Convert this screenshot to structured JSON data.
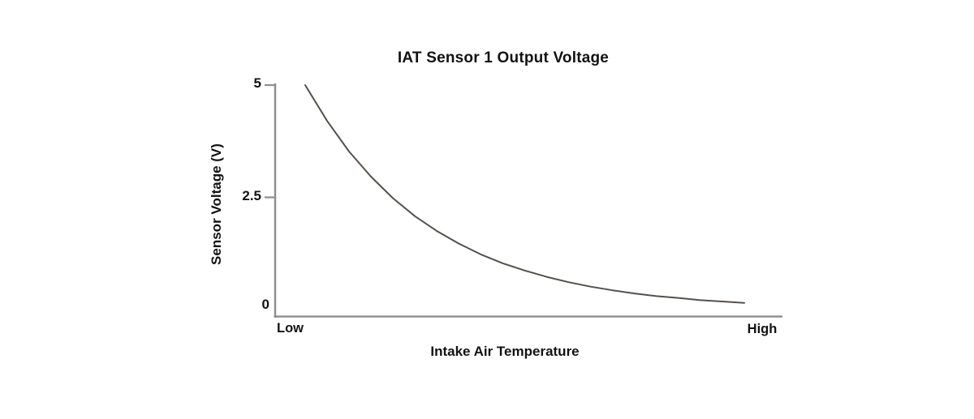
{
  "page": {
    "background": "#ffffff"
  },
  "chart_data": {
    "type": "line",
    "title": "IAT Sensor 1 Output Voltage",
    "xlabel": "Intake Air Temperature",
    "ylabel": "Sensor Voltage (V)",
    "grid": false,
    "legend": false,
    "x_axis": {
      "scale": "qualitative",
      "end_labels": [
        "Low",
        "High"
      ]
    },
    "y_axis": {
      "range": [
        0,
        5
      ],
      "ticks": [
        {
          "value": 5,
          "label": "5",
          "tick_mark": true
        },
        {
          "value": 2.5,
          "label": "2.5",
          "tick_mark": true
        },
        {
          "value": 0,
          "label": "0",
          "tick_mark": false
        }
      ]
    },
    "series": [
      {
        "name": "IAT Sensor 1 output voltage",
        "shape": "exponential-decay",
        "x_unit": "fraction of Low-to-High temperature span",
        "y_unit": "volts",
        "points": [
          [
            0.0,
            5.0
          ],
          [
            0.05,
            4.2
          ],
          [
            0.1,
            3.52
          ],
          [
            0.15,
            2.96
          ],
          [
            0.2,
            2.48
          ],
          [
            0.25,
            2.08
          ],
          [
            0.3,
            1.75
          ],
          [
            0.35,
            1.47
          ],
          [
            0.4,
            1.23
          ],
          [
            0.45,
            1.03
          ],
          [
            0.5,
            0.87
          ],
          [
            0.55,
            0.73
          ],
          [
            0.6,
            0.61
          ],
          [
            0.65,
            0.51
          ],
          [
            0.7,
            0.43
          ],
          [
            0.75,
            0.36
          ],
          [
            0.8,
            0.3
          ],
          [
            0.85,
            0.26
          ],
          [
            0.9,
            0.21
          ],
          [
            0.95,
            0.18
          ],
          [
            1.0,
            0.15
          ]
        ]
      }
    ],
    "colors": {
      "curve": "#55504d",
      "axis": "#8e8e8e",
      "text": "#121212"
    }
  }
}
